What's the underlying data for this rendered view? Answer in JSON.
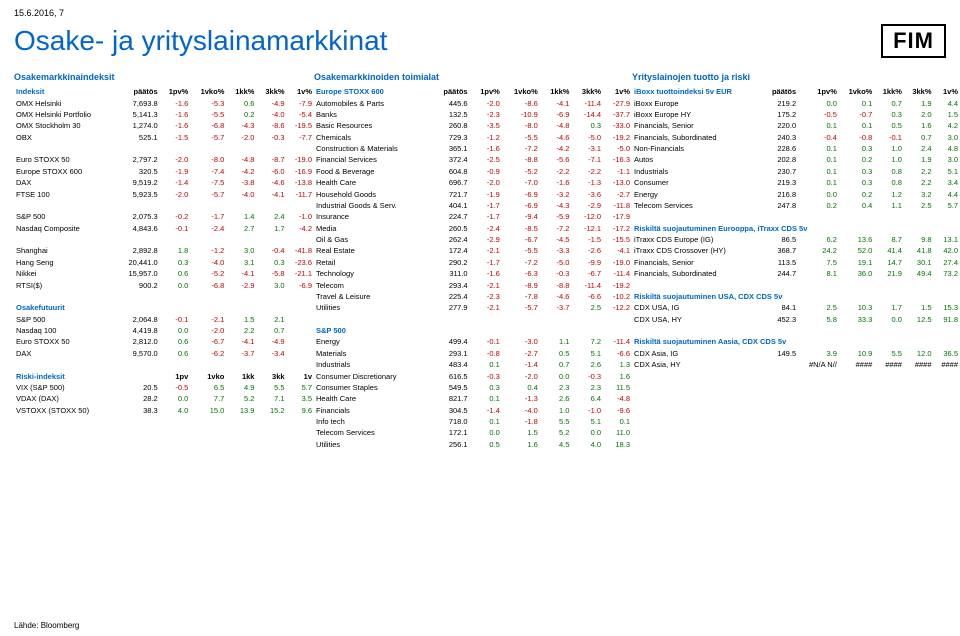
{
  "date": "15.6.2016, 7",
  "title": "Osake- ja yrityslainamarkkinat",
  "logo": "FIM",
  "footer": "Lähde: Bloomberg",
  "colors": {
    "link": "#0066cc",
    "neg": "#cc0000",
    "pos": "#007700"
  },
  "col1": {
    "header": "Osakemarkkinaindeksit",
    "th": [
      "Indeksit",
      "päätös",
      "1pv%",
      "1vko%",
      "1kk%",
      "3kk%",
      "1v%"
    ],
    "rows": [
      [
        "OMX Helsinki",
        "7,693.8",
        "-1.6",
        "-5.3",
        "0.6",
        "-4.9",
        "-7.9"
      ],
      [
        "OMX Helsinki Portfolio",
        "5,141.3",
        "-1.6",
        "-5.5",
        "0.2",
        "-4.0",
        "-5.4"
      ],
      [
        "OMX Stockholm 30",
        "1,274.0",
        "-1.6",
        "-6.8",
        "-4.3",
        "-8.6",
        "-19.5"
      ],
      [
        "OBX",
        "525.1",
        "-1.5",
        "-5.7",
        "-2.0",
        "-0.3",
        "-7.7"
      ]
    ],
    "rows2": [
      [
        "Euro STOXX 50",
        "2,797.2",
        "-2.0",
        "-8.0",
        "-4.8",
        "-8.7",
        "-19.0"
      ],
      [
        "Europe STOXX 600",
        "320.5",
        "-1.9",
        "-7.4",
        "-4.2",
        "-6.0",
        "-16.9"
      ],
      [
        "DAX",
        "9,519.2",
        "-1.4",
        "-7.5",
        "-3.8",
        "-4.6",
        "-13.8"
      ],
      [
        "FTSE 100",
        "5,923.5",
        "-2.0",
        "-5.7",
        "-4.0",
        "-4.1",
        "-11.7"
      ]
    ],
    "rows3": [
      [
        "S&P 500",
        "2,075.3",
        "-0.2",
        "-1.7",
        "1.4",
        "2.4",
        "-1.0"
      ],
      [
        "Nasdaq Composite",
        "4,843.6",
        "-0.1",
        "-2.4",
        "2.7",
        "1.7",
        "-4.2"
      ]
    ],
    "rows4": [
      [
        "Shanghai",
        "2,892.8",
        "1.8",
        "-1.2",
        "3.0",
        "-0.4",
        "-41.8"
      ],
      [
        "Hang Seng",
        "20,441.0",
        "0.3",
        "-4.0",
        "3.1",
        "0.3",
        "-23.6"
      ],
      [
        "Nikkei",
        "15,957.0",
        "0.6",
        "-5.2",
        "-4.1",
        "-5.8",
        "-21.1"
      ],
      [
        "RTSI($)",
        "900.2",
        "0.0",
        "-6.8",
        "-2.9",
        "3.0",
        "-6.9"
      ]
    ],
    "futHeader": "Osakefutuurit",
    "rows5": [
      [
        "S&P 500",
        "2,064.8",
        "-0.1",
        "-2.1",
        "1.5",
        "2.1",
        ""
      ],
      [
        "Nasdaq 100",
        "4,419.8",
        "0.0",
        "-2.0",
        "2.2",
        "0.7",
        ""
      ],
      [
        "Euro STOXX 50",
        "2,812.0",
        "0.6",
        "-6.7",
        "-4.1",
        "-4.9",
        ""
      ],
      [
        "DAX",
        "9,570.0",
        "0.6",
        "-6.2",
        "-3.7",
        "-3.4",
        ""
      ]
    ],
    "riskTh": [
      "Riski-indeksit",
      "",
      "1pv",
      "1vko",
      "1kk",
      "3kk",
      "1v"
    ],
    "rows6": [
      [
        "VIX (S&P 500)",
        "20.5",
        "-0.5",
        "6.5",
        "4.9",
        "5.5",
        "5.7"
      ],
      [
        "VDAX (DAX)",
        "28.2",
        "0.0",
        "7.7",
        "5.2",
        "7.1",
        "3.5"
      ],
      [
        "VSTOXX (STOXX 50)",
        "38.3",
        "4.0",
        "15.0",
        "13.9",
        "15.2",
        "9.6"
      ]
    ]
  },
  "col2": {
    "header": "Osakemarkkinoiden toimialat",
    "th": [
      "Europe STOXX 600",
      "päätös",
      "1pv%",
      "1vko%",
      "1kk%",
      "3kk%",
      "1v%"
    ],
    "rows": [
      [
        "Automobiles & Parts",
        "445.6",
        "-2.0",
        "-8.6",
        "-4.1",
        "-11.4",
        "-27.9"
      ],
      [
        "Banks",
        "132.5",
        "-2.3",
        "-10.9",
        "-6.9",
        "-14.4",
        "-37.7"
      ],
      [
        "Basic Resources",
        "260.8",
        "-3.5",
        "-8.0",
        "-4.8",
        "0.3",
        "-33.0"
      ],
      [
        "Chemicals",
        "729.3",
        "-1.2",
        "-5.5",
        "-4.6",
        "-5.0",
        "-19.2"
      ],
      [
        "Construction & Materials",
        "365.1",
        "-1.6",
        "-7.2",
        "-4.2",
        "-3.1",
        "-5.0"
      ],
      [
        "Financial Services",
        "372.4",
        "-2.5",
        "-8.8",
        "-5.6",
        "-7.1",
        "-16.3"
      ],
      [
        "Food & Beverage",
        "604.8",
        "-0.9",
        "-5.2",
        "-2.2",
        "-2.2",
        "-1.1"
      ],
      [
        "Health Care",
        "696.7",
        "-2.0",
        "-7.0",
        "-1.6",
        "-1.3",
        "-13.0"
      ],
      [
        "Household Goods",
        "721.7",
        "-1.9",
        "-6.9",
        "-3.2",
        "-3.6",
        "-2.7"
      ],
      [
        "Industrial Goods & Serv.",
        "404.1",
        "-1.7",
        "-6.9",
        "-4.3",
        "-2.9",
        "-11.8"
      ],
      [
        "Insurance",
        "224.7",
        "-1.7",
        "-9.4",
        "-5.9",
        "-12.0",
        "-17.9"
      ],
      [
        "Media",
        "260.5",
        "-2.4",
        "-8.5",
        "-7.2",
        "-12.1",
        "-17.2"
      ],
      [
        "Oil & Gas",
        "262.4",
        "-2.9",
        "-6.7",
        "-4.5",
        "-1.5",
        "-15.5"
      ],
      [
        "Real Estate",
        "172.4",
        "-2.1",
        "-5.5",
        "-3.3",
        "-2.6",
        "-4.1"
      ],
      [
        "Retail",
        "290.2",
        "-1.7",
        "-7.2",
        "-5.0",
        "-9.9",
        "-19.0"
      ],
      [
        "Technology",
        "311.0",
        "-1.6",
        "-6.3",
        "-0.3",
        "-6.7",
        "-11.4"
      ],
      [
        "Telecom",
        "293.4",
        "-2.1",
        "-8.9",
        "-8.8",
        "-11.4",
        "-19.2"
      ],
      [
        "Travel & Leisure",
        "225.4",
        "-2.3",
        "-7.8",
        "-4.6",
        "-6.6",
        "-10.2"
      ],
      [
        "Utilities",
        "277.9",
        "-2.1",
        "-5.7",
        "-3.7",
        "2.5",
        "-12.2"
      ]
    ],
    "th2": [
      "S&P 500",
      "",
      "",
      "",
      "",
      "",
      ""
    ],
    "rows2": [
      [
        "Energy",
        "499.4",
        "-0.1",
        "-3.0",
        "1.1",
        "7.2",
        "-11.4"
      ],
      [
        "Materials",
        "293.1",
        "-0.8",
        "-2.7",
        "0.5",
        "5.1",
        "-6.6"
      ],
      [
        "Industrials",
        "483.4",
        "0.1",
        "-1.4",
        "0.7",
        "2.6",
        "1.3"
      ],
      [
        "Consumer Discretionary",
        "616.5",
        "-0.3",
        "-2.0",
        "0.0",
        "-0.3",
        "1.6"
      ],
      [
        "Consumer Staples",
        "549.5",
        "0.3",
        "0.4",
        "2.3",
        "2.3",
        "11.5"
      ],
      [
        "Health Care",
        "821.7",
        "0.1",
        "-1.3",
        "2.6",
        "6.4",
        "-4.8"
      ],
      [
        "Financials",
        "304.5",
        "-1.4",
        "-4.0",
        "1.0",
        "-1.0",
        "-9.6"
      ],
      [
        "Info tech",
        "718.0",
        "0.1",
        "-1.8",
        "5.5",
        "5.1",
        "0.1"
      ],
      [
        "Telecom Services",
        "172.1",
        "0.0",
        "1.5",
        "5.2",
        "0.0",
        "11.0"
      ],
      [
        "Utilities",
        "256.1",
        "0.5",
        "1.6",
        "4.5",
        "4.0",
        "18.3"
      ]
    ]
  },
  "col3": {
    "header": "Yrityslainojen tuotto ja riski",
    "th": [
      "iBoxx tuottoindeksi 5v EUR",
      "päätös",
      "1pv%",
      "1vko%",
      "1kk%",
      "3kk%",
      "1v%"
    ],
    "rows": [
      [
        "iBoxx Europe",
        "219.2",
        "0.0",
        "0.1",
        "0.7",
        "1.9",
        "4.4"
      ],
      [
        "iBoxx Europe HY",
        "175.2",
        "-0.5",
        "-0.7",
        "0.3",
        "2.0",
        "1.5"
      ],
      [
        "Financials, Senior",
        "220.0",
        "0.1",
        "0.1",
        "0.5",
        "1.6",
        "4.2"
      ],
      [
        "Financials, Subordinated",
        "240.3",
        "-0.4",
        "-0.8",
        "-0.1",
        "0.7",
        "3.0"
      ],
      [
        "Non-Financials",
        "228.6",
        "0.1",
        "0.3",
        "1.0",
        "2.4",
        "4.8"
      ],
      [
        "Autos",
        "202.8",
        "0.1",
        "0.2",
        "1.0",
        "1.9",
        "3.0"
      ],
      [
        "Industrials",
        "230.7",
        "0.1",
        "0.3",
        "0.8",
        "2.2",
        "5.1"
      ],
      [
        "Consumer",
        "219.3",
        "0.1",
        "0.3",
        "0.8",
        "2.2",
        "3.4"
      ],
      [
        "Energy",
        "216.8",
        "0.0",
        "0.2",
        "1.2",
        "3.2",
        "4.4"
      ],
      [
        "Telecom Services",
        "247.8",
        "0.2",
        "0.4",
        "1.1",
        "2.5",
        "5.7"
      ]
    ],
    "sub1": "Riskiltä suojautuminen Eurooppa, iTraxx CDS 5v",
    "rows2": [
      [
        "iTraxx CDS Europe (IG)",
        "86.5",
        "6.2",
        "13.6",
        "8.7",
        "9.8",
        "13.1"
      ],
      [
        "iTraxx CDS Crossover (HY)",
        "368.7",
        "24.2",
        "52.0",
        "41.4",
        "41.8",
        "42.0"
      ],
      [
        "Financials, Senior",
        "113.5",
        "7.5",
        "19.1",
        "14.7",
        "30.1",
        "27.4"
      ],
      [
        "Financials, Subordinated",
        "244.7",
        "8.1",
        "36.0",
        "21.9",
        "49.4",
        "73.2"
      ]
    ],
    "sub2": "Riskiltä suojautuminen USA, CDX CDS 5v",
    "rows3": [
      [
        "CDX USA, IG",
        "84.1",
        "2.5",
        "10.3",
        "1.7",
        "1.5",
        "15.3"
      ],
      [
        "CDX USA, HY",
        "452.3",
        "5.8",
        "33.3",
        "0.0",
        "12.5",
        "91.8"
      ]
    ],
    "sub3": "Riskiltä suojautuminen Aasia, CDX CDS 5v",
    "rows4": [
      [
        "CDX Asia, IG",
        "149.5",
        "3.9",
        "10.9",
        "5.5",
        "12.0",
        "36.5"
      ],
      [
        "CDX Asia, HY",
        "",
        "#N/A N//",
        "####",
        "####",
        "####",
        "####"
      ]
    ]
  }
}
